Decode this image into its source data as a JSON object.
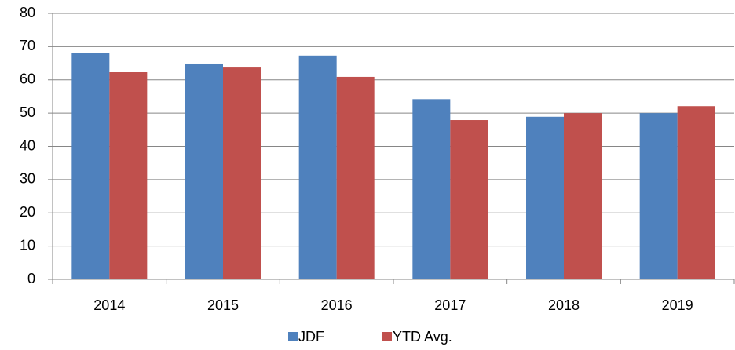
{
  "chart_data": {
    "type": "bar",
    "categories": [
      "2014",
      "2015",
      "2016",
      "2017",
      "2018",
      "2019"
    ],
    "series": [
      {
        "name": "JDF",
        "color": "#4f81bd",
        "values": [
          68,
          64.9,
          67.3,
          54.2,
          48.9,
          50
        ]
      },
      {
        "name": "YTD Avg.",
        "color": "#c0504d",
        "values": [
          62.3,
          63.7,
          60.9,
          47.9,
          50,
          52.1
        ]
      }
    ],
    "ylim": [
      0,
      80
    ],
    "yticks": [
      0,
      10,
      20,
      30,
      40,
      50,
      60,
      70,
      80
    ],
    "grid": true,
    "legend": "bottom"
  }
}
